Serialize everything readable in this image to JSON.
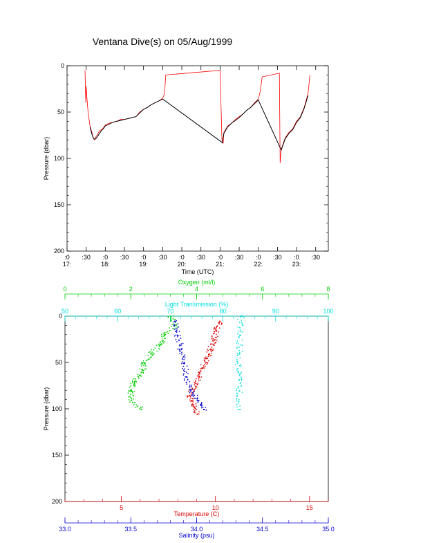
{
  "chart_data": [
    {
      "type": "line",
      "title": "Ventana Dive(s) on 05/Aug/1999",
      "xlabel": "Time (UTC)",
      "ylabel": "Pressure (dbar)",
      "ylim": [
        200,
        0
      ],
      "xlim_hours": [
        17.0,
        23.83
      ],
      "x_ticks": [
        {
          "x": 17.0,
          "label": ":0",
          "hour": "17:"
        },
        {
          "x": 17.5,
          "label": ":30"
        },
        {
          "x": 18.0,
          "label": ":0",
          "hour": "18:"
        },
        {
          "x": 18.5,
          "label": ":30"
        },
        {
          "x": 19.0,
          "label": ":0",
          "hour": "19:"
        },
        {
          "x": 19.5,
          "label": ":30"
        },
        {
          "x": 20.0,
          "label": ":0",
          "hour": "20:"
        },
        {
          "x": 20.5,
          "label": ":30"
        },
        {
          "x": 21.0,
          "label": ":0",
          "hour": "21:"
        },
        {
          "x": 21.5,
          "label": ":30"
        },
        {
          "x": 22.0,
          "label": ":0",
          "hour": "22:"
        },
        {
          "x": 22.5,
          "label": ":30"
        },
        {
          "x": 23.0,
          "label": ":0",
          "hour": "23:"
        },
        {
          "x": 23.5,
          "label": ":30"
        }
      ],
      "y_ticks": [
        0,
        50,
        100,
        150,
        200
      ],
      "series": [
        {
          "color": "#ff0000",
          "x": [
            17.47,
            17.49,
            17.5,
            17.52,
            17.55,
            17.6,
            17.65,
            17.68,
            17.72,
            17.75,
            17.8,
            17.85,
            17.9,
            17.95,
            18.0,
            18.1,
            18.2,
            18.3,
            18.4,
            18.5,
            18.6,
            18.7,
            18.8,
            18.9,
            19.0,
            19.1,
            19.2,
            19.3,
            19.4,
            19.5,
            19.55,
            19.58,
            21.0,
            21.05,
            21.08,
            21.1,
            21.2,
            21.3,
            21.4,
            21.5,
            21.6,
            21.7,
            21.8,
            21.9,
            22.0,
            22.05,
            22.1,
            22.55,
            22.57,
            22.6,
            22.65,
            22.7,
            22.8,
            22.9,
            23.0,
            23.1,
            23.2,
            23.3,
            23.35
          ],
          "y": [
            5,
            40,
            22,
            35,
            50,
            65,
            72,
            78,
            80,
            77,
            74,
            70,
            69,
            67,
            64,
            62,
            61,
            60,
            58,
            58,
            57,
            56,
            55,
            50,
            47,
            45,
            42,
            40,
            38,
            35,
            30,
            10,
            5,
            80,
            84,
            72,
            65,
            62,
            58,
            55,
            52,
            48,
            45,
            40,
            36,
            28,
            12,
            8,
            105,
            90,
            84,
            78,
            72,
            68,
            60,
            55,
            45,
            30,
            10
          ]
        },
        {
          "color": "#000000",
          "x": [
            17.6,
            17.65,
            17.7,
            17.75,
            17.8,
            17.85,
            17.9,
            17.95,
            18.0,
            18.1,
            18.2,
            18.3,
            18.4,
            18.5,
            18.6,
            18.7,
            18.8,
            18.9,
            19.0,
            19.1,
            19.2,
            19.3,
            19.4,
            19.5,
            21.06,
            21.1,
            21.2,
            21.3,
            21.4,
            21.5,
            21.6,
            21.7,
            21.8,
            21.9,
            22.0,
            22.6,
            22.65,
            22.7,
            22.8,
            22.9,
            23.0,
            23.1,
            23.2,
            23.3
          ],
          "y": [
            66,
            74,
            79,
            79,
            76,
            73,
            70,
            68,
            65,
            63,
            61,
            60,
            59,
            58,
            57,
            56,
            55,
            51,
            47,
            45,
            42,
            40,
            38,
            36,
            83,
            73,
            66,
            62,
            59,
            56,
            52,
            48,
            45,
            41,
            37,
            91,
            85,
            79,
            73,
            69,
            61,
            56,
            46,
            32
          ]
        }
      ]
    },
    {
      "type": "scatter",
      "ylabel": "Pressure (dbar)",
      "ylim": [
        200,
        0
      ],
      "y_ticks": [
        0,
        50,
        100,
        150,
        200
      ],
      "axes": [
        {
          "label": "Oxygen (ml/l)",
          "position": "top",
          "color": "#00cc00",
          "range": [
            0,
            8
          ],
          "ticks": [
            0,
            2,
            4,
            6,
            8
          ]
        },
        {
          "label": "Light Transmission (%)",
          "position": "top",
          "color": "#00dddd",
          "range": [
            50,
            100
          ],
          "ticks": [
            50,
            60,
            70,
            80,
            90,
            100
          ]
        },
        {
          "label": "Temperature (C)",
          "position": "bottom",
          "color": "#dd0000",
          "range": [
            2.0,
            16.0
          ],
          "ticks": [
            5,
            10,
            15
          ]
        },
        {
          "label": "Salinity (psu)",
          "position": "bottom",
          "color": "#0000cc",
          "range": [
            33.0,
            35.0
          ],
          "ticks": [
            "33.0",
            "33.5",
            "34.0",
            "34.5",
            "35.0"
          ]
        }
      ],
      "series": [
        {
          "axis": 0,
          "color": "#00cc00",
          "points": [
            [
              3.2,
              0
            ],
            [
              3.3,
              10
            ],
            [
              3.0,
              20
            ],
            [
              2.9,
              30
            ],
            [
              2.6,
              40
            ],
            [
              2.4,
              50
            ],
            [
              2.3,
              60
            ],
            [
              2.1,
              70
            ],
            [
              2.0,
              80
            ],
            [
              2.0,
              90
            ],
            [
              2.3,
              100
            ]
          ]
        },
        {
          "axis": 1,
          "color": "#00dddd",
          "points": [
            [
              83.2,
              0
            ],
            [
              83.1,
              20
            ],
            [
              83.0,
              40
            ],
            [
              82.8,
              60
            ],
            [
              83.0,
              80
            ],
            [
              83.1,
              100
            ]
          ]
        },
        {
          "axis": 2,
          "color": "#dd0000",
          "points": [
            [
              10.2,
              5
            ],
            [
              10.0,
              15
            ],
            [
              9.9,
              25
            ],
            [
              9.7,
              35
            ],
            [
              9.5,
              45
            ],
            [
              9.3,
              55
            ],
            [
              9.1,
              65
            ],
            [
              8.9,
              75
            ],
            [
              8.6,
              85
            ],
            [
              8.8,
              95
            ],
            [
              9.0,
              105
            ]
          ]
        },
        {
          "axis": 3,
          "color": "#0000cc",
          "points": [
            [
              33.83,
              5
            ],
            [
              33.85,
              20
            ],
            [
              33.88,
              35
            ],
            [
              33.9,
              50
            ],
            [
              33.92,
              65
            ],
            [
              33.95,
              80
            ],
            [
              34.0,
              90
            ],
            [
              34.05,
              100
            ]
          ]
        }
      ]
    }
  ]
}
